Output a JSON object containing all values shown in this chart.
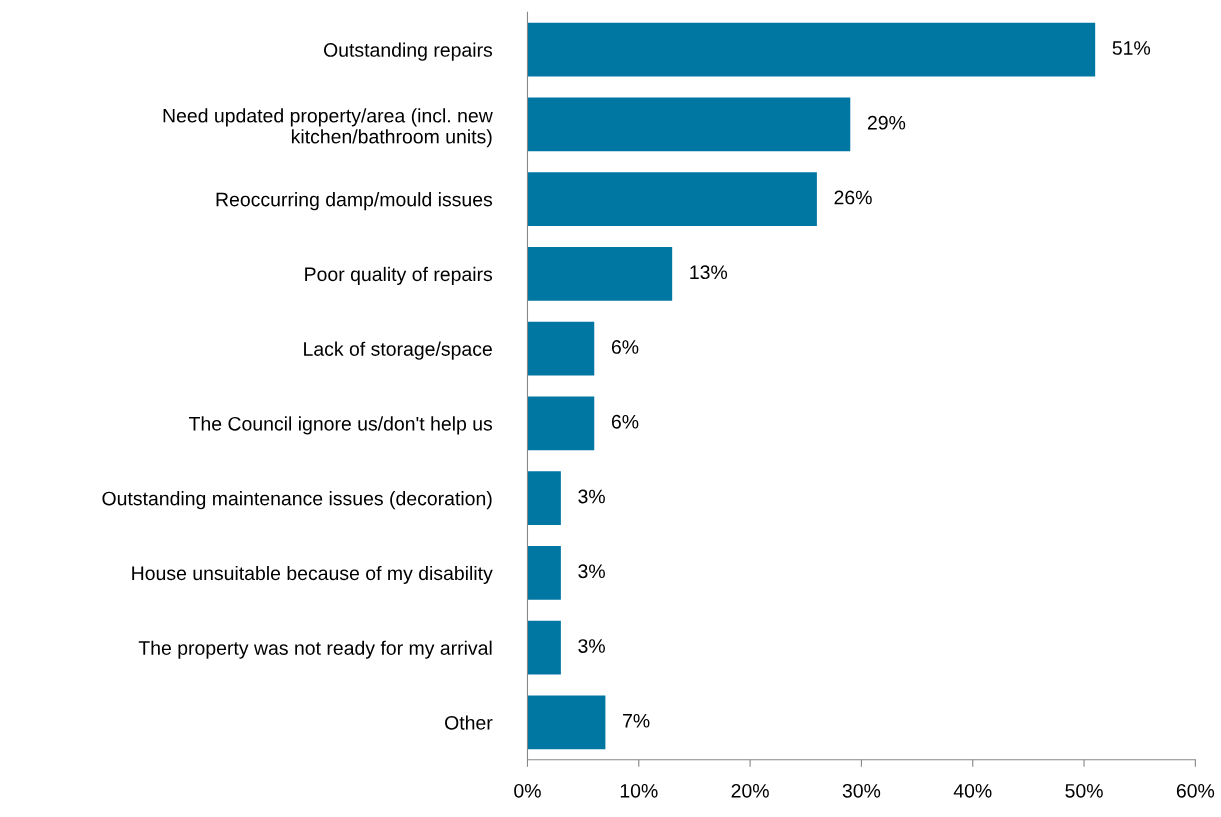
{
  "chart_data": {
    "type": "bar",
    "orientation": "horizontal",
    "categories": [
      "Outstanding repairs",
      "Need updated property/area (incl. new\nkitchen/bathroom units)",
      "Reoccurring damp/mould issues",
      "Poor quality of repairs",
      "Lack of storage/space",
      "The Council ignore us/don't help us",
      "Outstanding maintenance issues (decoration)",
      "House unsuitable because of my disability",
      "The property was not ready for my arrival",
      "Other"
    ],
    "values": [
      51,
      29,
      26,
      13,
      6,
      6,
      3,
      3,
      3,
      7
    ],
    "value_labels": [
      "51%",
      "29%",
      "26%",
      "13%",
      "6%",
      "6%",
      "3%",
      "3%",
      "3%",
      "7%"
    ],
    "color": "#0076a3",
    "xlim": [
      0,
      60
    ],
    "xticks": [
      {
        "value": 0,
        "label": "0%"
      },
      {
        "value": 10,
        "label": "10%"
      },
      {
        "value": 20,
        "label": "20%"
      },
      {
        "value": 30,
        "label": "30%"
      },
      {
        "value": 40,
        "label": "40%"
      },
      {
        "value": 50,
        "label": "50%"
      },
      {
        "value": 60,
        "label": "60%"
      }
    ],
    "grid": false
  }
}
